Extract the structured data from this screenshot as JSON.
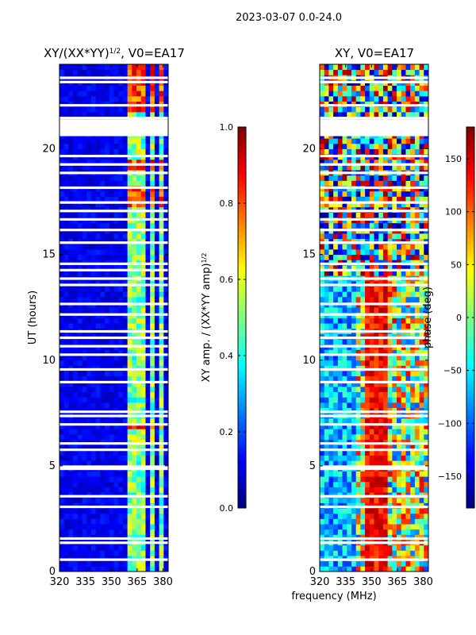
{
  "suptitle": "2023-03-07 0.0-24.0",
  "xlabel_shared": "frequency (MHz)",
  "colors": {
    "jet": [
      "#00007f",
      "#0000ff",
      "#007fff",
      "#00ffff",
      "#7fff7f",
      "#ffff00",
      "#ff7f00",
      "#ff0000",
      "#7f0000"
    ],
    "background": "#ffffff",
    "axis": "#000000"
  },
  "chart_data": [
    {
      "type": "heatmap",
      "title": "XY/(XX*YY)",
      "title_sup": "1/2",
      "title_suffix": ", V0=EA17",
      "xlabel": "",
      "ylabel": "UT (hours)",
      "xlim": [
        320,
        383
      ],
      "ylim": [
        0,
        24
      ],
      "xticks": [
        320,
        335,
        350,
        365,
        380
      ],
      "yticks": [
        0,
        5,
        10,
        15,
        20
      ],
      "colorbar": {
        "label": "XY amp. / (XX*YY amp)",
        "label_sup": "1/2",
        "range": [
          0.0,
          1.0
        ],
        "ticks": [
          "0.0",
          "0.2",
          "0.4",
          "0.6",
          "0.8",
          "1.0"
        ],
        "tick_values": [
          0.0,
          0.2,
          0.4,
          0.6,
          0.8,
          1.0
        ]
      },
      "gap_rows_hours": [
        0.5,
        1.3,
        1.5,
        3.0,
        3.5,
        4.8,
        4.9,
        5.7,
        6.0,
        6.9,
        7.3,
        7.5,
        8.9,
        9.5,
        10.2,
        10.6,
        11.0,
        11.3,
        12.1,
        12.6,
        13.5,
        13.8,
        14.2,
        14.5,
        15.5,
        16.1,
        16.6,
        17.0,
        17.4,
        18.1,
        18.8,
        19.2,
        19.6,
        20.6,
        20.8,
        21.0,
        21.2,
        21.4,
        22.0,
        23.1,
        23.3
      ],
      "bright_channels_mhz": [
        [
          359,
          362
        ],
        [
          363,
          367
        ],
        [
          368,
          371
        ],
        [
          373,
          376
        ],
        [
          377,
          380
        ]
      ],
      "hot_bands_hours": [
        [
          6.6,
          6.9
        ],
        [
          17.2,
          18.2
        ],
        [
          18.8,
          19.3
        ],
        [
          21.6,
          24.0
        ]
      ]
    },
    {
      "type": "heatmap",
      "title": "XY, V0=EA17",
      "xlabel": "",
      "ylabel": "",
      "xlim": [
        320,
        383
      ],
      "ylim": [
        0,
        24
      ],
      "xticks": [
        320,
        335,
        350,
        365,
        380
      ],
      "yticks": [
        0,
        5,
        10,
        15,
        20
      ],
      "colorbar": {
        "label": "phase (deg)",
        "range": [
          -180,
          180
        ],
        "ticks": [
          "−150",
          "−100",
          "−50",
          "0",
          "50",
          "100",
          "150"
        ],
        "tick_values": [
          -150,
          -100,
          -50,
          0,
          50,
          100,
          150
        ]
      },
      "gap_rows_hours": [
        0.5,
        1.3,
        1.5,
        3.0,
        3.5,
        4.8,
        4.9,
        5.7,
        6.0,
        6.9,
        7.3,
        7.5,
        8.9,
        9.5,
        10.2,
        10.6,
        11.0,
        11.3,
        12.1,
        12.6,
        13.5,
        13.8,
        14.2,
        14.5,
        15.5,
        16.1,
        16.6,
        17.0,
        17.4,
        18.1,
        18.8,
        19.2,
        19.6,
        20.6,
        20.8,
        21.0,
        21.2,
        21.4,
        22.0,
        23.1,
        23.3
      ]
    }
  ]
}
